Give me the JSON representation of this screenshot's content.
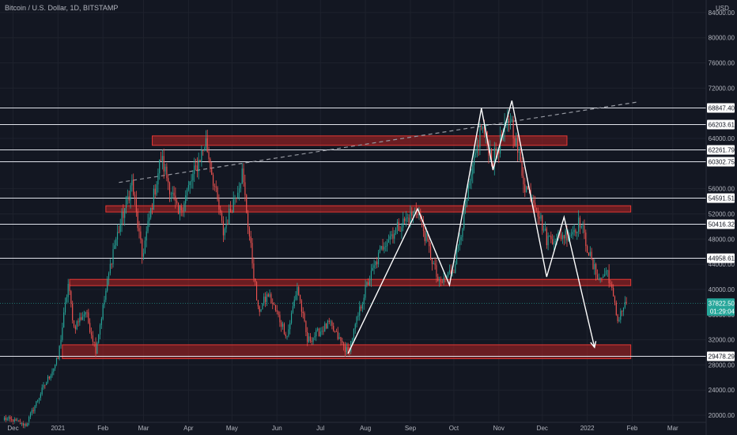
{
  "chart_data": {
    "type": "candlestick",
    "title": "Bitcoin / U.S. Dollar, 1D, BITSTAMP",
    "currency": "USD",
    "x_tick_labels": [
      "Dec",
      "2021",
      "Feb",
      "Mar",
      "Apr",
      "May",
      "Jun",
      "Jul",
      "Aug",
      "Sep",
      "Oct",
      "Nov",
      "Dec",
      "2022",
      "Feb",
      "Mar"
    ],
    "y_tick_labels": [
      "84000.00",
      "80000.00",
      "76000.00",
      "72000.00",
      "64000.00",
      "56000.00",
      "52000.00",
      "48000.00",
      "44000.00",
      "40000.00",
      "36000.00",
      "32000.00",
      "28000.00",
      "24000.00",
      "20000.00"
    ],
    "x_range": [
      "2020-11-22",
      "2022-03-24"
    ],
    "y_range": [
      19000,
      86000
    ],
    "horizontal_levels": [
      "68847.40",
      "66203.61",
      "62261.79",
      "60302.75",
      "54591.51",
      "50416.32",
      "44958.61",
      "29478.29"
    ],
    "current_price": {
      "price": "37822.50",
      "countdown": "01:29:04",
      "color": "#26a69a"
    },
    "zones": [
      {
        "from": "2021-01-04",
        "to": "2022-01-31",
        "low": 29000,
        "high": 31200
      },
      {
        "from": "2021-01-09",
        "to": "2022-01-31",
        "low": 40600,
        "high": 41600
      },
      {
        "from": "2021-02-03",
        "to": "2022-01-31",
        "low": 52300,
        "high": 53300
      },
      {
        "from": "2021-03-07",
        "to": "2021-12-18",
        "low": 62900,
        "high": 64400
      }
    ],
    "trendline": {
      "from": [
        "2021-02-12",
        57000
      ],
      "to": [
        "2022-02-05",
        69800
      ]
    },
    "pattern_path": [
      [
        "2021-07-20",
        29800
      ],
      [
        "2021-09-06",
        52800
      ],
      [
        "2021-09-28",
        40700
      ],
      [
        "2021-10-20",
        68800
      ],
      [
        "2021-10-28",
        59000
      ],
      [
        "2021-11-10",
        70000
      ],
      [
        "2021-12-04",
        42000
      ],
      [
        "2021-12-16",
        51500
      ],
      [
        "2022-01-06",
        30800
      ]
    ],
    "ohlc_anchors": [
      [
        "2020-11-25",
        19500
      ],
      [
        "2020-12-10",
        18500
      ],
      [
        "2020-12-20",
        23500
      ],
      [
        "2021-01-01",
        29000
      ],
      [
        "2021-01-08",
        40800
      ],
      [
        "2021-01-12",
        34000
      ],
      [
        "2021-01-20",
        36500
      ],
      [
        "2021-01-27",
        30500
      ],
      [
        "2021-02-08",
        46300
      ],
      [
        "2021-02-21",
        57000
      ],
      [
        "2021-02-28",
        45200
      ],
      [
        "2021-03-13",
        61000
      ],
      [
        "2021-03-25",
        51800
      ],
      [
        "2021-04-13",
        63500
      ],
      [
        "2021-04-25",
        49000
      ],
      [
        "2021-05-08",
        58500
      ],
      [
        "2021-05-19",
        36500
      ],
      [
        "2021-05-26",
        39200
      ],
      [
        "2021-06-08",
        32600
      ],
      [
        "2021-06-15",
        40500
      ],
      [
        "2021-06-22",
        31800
      ],
      [
        "2021-07-07",
        34500
      ],
      [
        "2021-07-20",
        29900
      ],
      [
        "2021-08-01",
        40000
      ],
      [
        "2021-08-14",
        47500
      ],
      [
        "2021-08-23",
        49800
      ],
      [
        "2021-09-06",
        52700
      ],
      [
        "2021-09-21",
        40600
      ],
      [
        "2021-10-01",
        43500
      ],
      [
        "2021-10-20",
        66000
      ],
      [
        "2021-10-28",
        60500
      ],
      [
        "2021-11-09",
        67500
      ],
      [
        "2021-11-19",
        56500
      ],
      [
        "2021-11-26",
        54000
      ],
      [
        "2021-12-04",
        48000
      ],
      [
        "2021-12-21",
        49000
      ],
      [
        "2021-12-27",
        50800
      ],
      [
        "2022-01-05",
        43500
      ],
      [
        "2022-01-10",
        41600
      ],
      [
        "2022-01-15",
        43000
      ],
      [
        "2022-01-22",
        35000
      ],
      [
        "2022-01-24",
        36500
      ],
      [
        "2022-01-28",
        37822.5
      ]
    ]
  }
}
